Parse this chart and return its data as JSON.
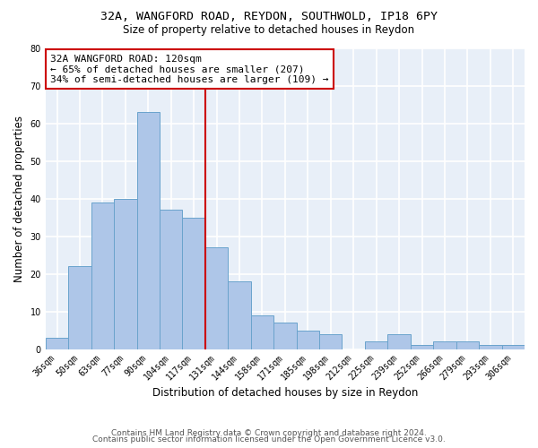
{
  "title1": "32A, WANGFORD ROAD, REYDON, SOUTHWOLD, IP18 6PY",
  "title2": "Size of property relative to detached houses in Reydon",
  "xlabel": "Distribution of detached houses by size in Reydon",
  "ylabel": "Number of detached properties",
  "categories": [
    "36sqm",
    "50sqm",
    "63sqm",
    "77sqm",
    "90sqm",
    "104sqm",
    "117sqm",
    "131sqm",
    "144sqm",
    "158sqm",
    "171sqm",
    "185sqm",
    "198sqm",
    "212sqm",
    "225sqm",
    "239sqm",
    "252sqm",
    "266sqm",
    "279sqm",
    "293sqm",
    "306sqm"
  ],
  "values": [
    3,
    22,
    39,
    40,
    63,
    37,
    35,
    27,
    18,
    9,
    7,
    5,
    4,
    0,
    2,
    4,
    1,
    2,
    2,
    1,
    1
  ],
  "bar_color": "#aec6e8",
  "bar_edge_color": "#6aa3cc",
  "reference_line_x": 6.5,
  "annotation_text": "32A WANGFORD ROAD: 120sqm\n← 65% of detached houses are smaller (207)\n34% of semi-detached houses are larger (109) →",
  "annotation_box_color": "white",
  "annotation_box_edge_color": "#cc0000",
  "ylim": [
    0,
    80
  ],
  "yticks": [
    0,
    10,
    20,
    30,
    40,
    50,
    60,
    70,
    80
  ],
  "footer1": "Contains HM Land Registry data © Crown copyright and database right 2024.",
  "footer2": "Contains public sector information licensed under the Open Government Licence v3.0.",
  "background_color": "#e8eff8",
  "grid_color": "white",
  "title_fontsize": 9.5,
  "subtitle_fontsize": 8.5,
  "axis_label_fontsize": 8.5,
  "tick_fontsize": 7,
  "annotation_fontsize": 8,
  "footer_fontsize": 6.5
}
